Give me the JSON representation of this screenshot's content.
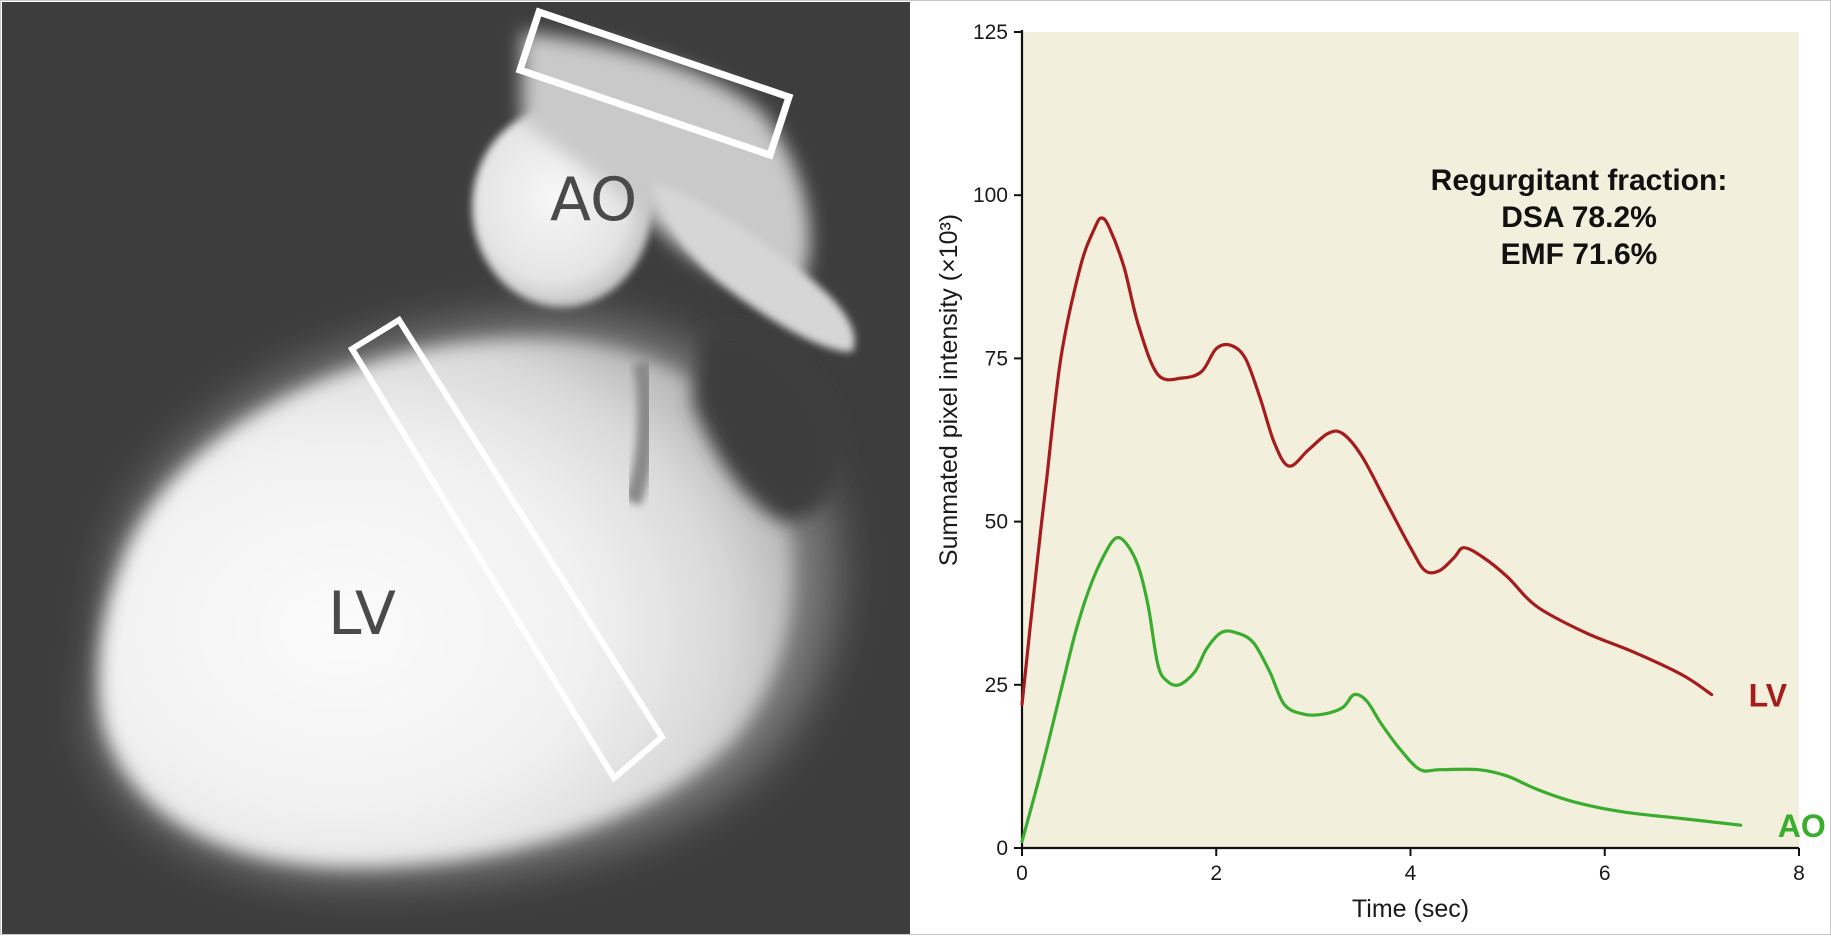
{
  "xray": {
    "labels": [
      "AO",
      "LV"
    ]
  },
  "chart_data": {
    "type": "line",
    "xlabel": "Time (sec)",
    "ylabel": "Summated pixel intensity (×10³)",
    "xlim": [
      0,
      8
    ],
    "ylim": [
      0,
      125
    ],
    "xticks": [
      0,
      2,
      4,
      6,
      8
    ],
    "yticks": [
      0,
      25,
      50,
      75,
      100,
      125
    ],
    "grid": false,
    "plot_background": "#f3efdd",
    "annotation": [
      "Regurgitant fraction:",
      "DSA 78.2%",
      "EMF 71.6%"
    ],
    "series": [
      {
        "name": "LV",
        "color": "#a61c1c",
        "x": [
          0,
          0.15,
          0.25,
          0.4,
          0.6,
          0.75,
          0.82,
          0.9,
          1.05,
          1.2,
          1.4,
          1.65,
          1.85,
          2.0,
          2.15,
          2.3,
          2.45,
          2.6,
          2.75,
          2.95,
          3.15,
          3.3,
          3.5,
          3.75,
          4.0,
          4.15,
          4.3,
          4.45,
          4.55,
          4.75,
          5.0,
          5.3,
          5.8,
          6.3,
          6.8,
          7.1
        ],
        "y": [
          22,
          43,
          56,
          75,
          89,
          95,
          96.5,
          95,
          89,
          80,
          72.5,
          72,
          73,
          76.5,
          77,
          75,
          69,
          62,
          58.5,
          61,
          63.5,
          63.5,
          60,
          53,
          46,
          42.5,
          42.5,
          44.5,
          46,
          44.5,
          41.5,
          37,
          33,
          30,
          26.5,
          23.5
        ]
      },
      {
        "name": "AO",
        "color": "#3aad2e",
        "x": [
          0,
          0.2,
          0.4,
          0.55,
          0.7,
          0.85,
          0.97,
          1.08,
          1.2,
          1.3,
          1.4,
          1.5,
          1.62,
          1.78,
          1.9,
          2.05,
          2.2,
          2.38,
          2.55,
          2.7,
          2.9,
          3.1,
          3.3,
          3.42,
          3.55,
          3.7,
          3.9,
          4.1,
          4.3,
          4.7,
          5.0,
          5.3,
          5.7,
          6.2,
          6.8,
          7.4
        ],
        "y": [
          1,
          12,
          24,
          33,
          40,
          45,
          47.5,
          46.5,
          43,
          37,
          28,
          25.5,
          25,
          27,
          30.5,
          33,
          33,
          31.5,
          27,
          22,
          20.5,
          20.5,
          21.5,
          23.5,
          22.5,
          19,
          15,
          12,
          12,
          12,
          11,
          9,
          7,
          5.5,
          4.5,
          3.5
        ]
      }
    ]
  }
}
